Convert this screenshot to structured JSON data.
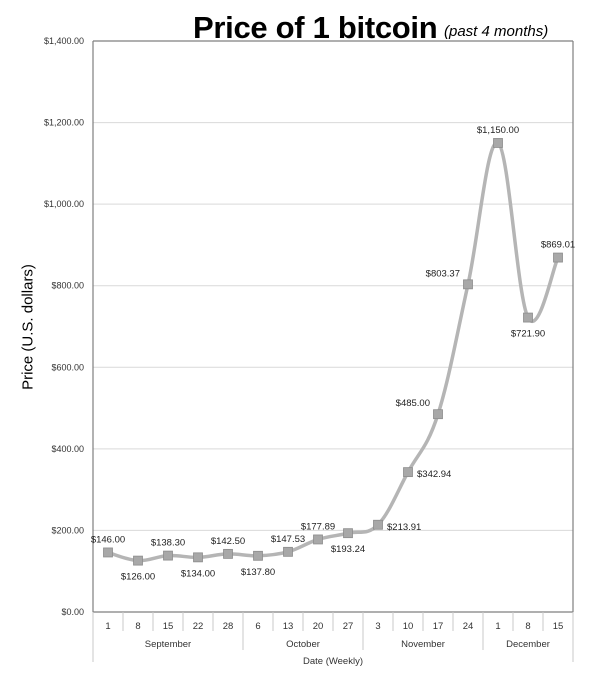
{
  "header": {
    "title": "Price of 1 bitcoin",
    "subtitle": "(past 4 months)"
  },
  "axes": {
    "ylabel": "Price (U.S. dollars)",
    "xlabel": "Date (Weekly)",
    "yticks": [
      "$0.00",
      "$200.00",
      "$400.00",
      "$600.00",
      "$800.00",
      "$1,000.00",
      "$1,200.00",
      "$1,400.00"
    ]
  },
  "colors": {
    "line": "#b5b5b5",
    "marker": "#a8a8a8",
    "grid": "#d9d9d9",
    "axis": "#7f7f7f"
  },
  "chart_data": {
    "type": "line",
    "title": "Price of 1 bitcoin (past 4 months)",
    "xlabel": "Date (Weekly)",
    "ylabel": "Price (U.S. dollars)",
    "ylim": [
      0,
      1400
    ],
    "ytick_step": 200,
    "grid": true,
    "legend": null,
    "months": [
      {
        "name": "September",
        "days": [
          "1",
          "8",
          "15",
          "22",
          "28"
        ]
      },
      {
        "name": "October",
        "days": [
          "6",
          "13",
          "20",
          "27"
        ]
      },
      {
        "name": "November",
        "days": [
          "3",
          "10",
          "17",
          "24"
        ]
      },
      {
        "name": "December",
        "days": [
          "1",
          "8",
          "15"
        ]
      }
    ],
    "categories": [
      "Sep 1",
      "Sep 8",
      "Sep 15",
      "Sep 22",
      "Sep 28",
      "Oct 6",
      "Oct 13",
      "Oct 20",
      "Oct 27",
      "Nov 3",
      "Nov 10",
      "Nov 17",
      "Nov 24",
      "Dec 1",
      "Dec 8",
      "Dec 15"
    ],
    "series": [
      {
        "name": "Price",
        "values": [
          146.0,
          126.0,
          138.3,
          134.0,
          142.5,
          137.8,
          147.53,
          177.89,
          193.24,
          213.91,
          342.94,
          485.0,
          803.37,
          1150.0,
          721.9,
          869.01
        ],
        "labels": [
          "$146.00",
          "$126.00",
          "$138.30",
          "$134.00",
          "$142.50",
          "$137.80",
          "$147.53",
          "$177.89",
          "$193.24",
          "$213.91",
          "$342.94",
          "$485.00",
          "$803.37",
          "$1,150.00",
          "$721.90",
          "$869.01"
        ],
        "label_pos": [
          "above",
          "below",
          "above",
          "below",
          "above",
          "below",
          "above",
          "above",
          "below",
          "right",
          "right",
          "left",
          "left",
          "above",
          "below",
          "above"
        ]
      }
    ]
  }
}
